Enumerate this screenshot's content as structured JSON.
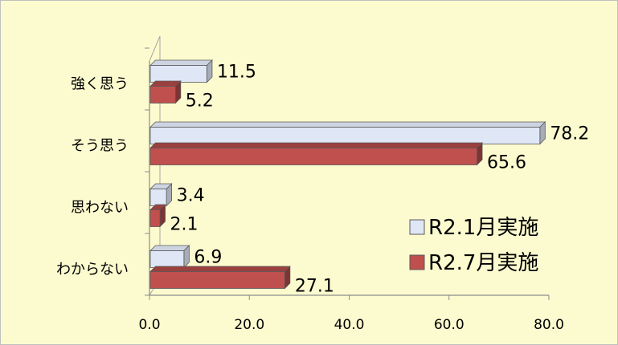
{
  "chart_data": {
    "type": "bar",
    "orientation": "horizontal",
    "title": "",
    "xlabel": "",
    "ylabel": "",
    "categories": [
      "強く思う",
      "そう思う",
      "思わない",
      "わからない"
    ],
    "series": [
      {
        "name": "R2.1月実施",
        "values": [
          11.5,
          78.2,
          3.4,
          6.9
        ],
        "color": "#dfe6f5"
      },
      {
        "name": "R2.7月実施",
        "values": [
          5.2,
          65.6,
          2.1,
          27.1
        ],
        "color": "#c0504d"
      }
    ],
    "data_labels": [
      [
        "11.5",
        "78.2",
        "3.4",
        "6.9"
      ],
      [
        "5.2",
        "65.6",
        "2.1",
        "27.1"
      ]
    ],
    "xlim": [
      0,
      80
    ],
    "xticks": [
      "0.0",
      "20.0",
      "40.0",
      "60.0",
      "80.0"
    ],
    "legend_position": "bottom-right",
    "grid": false,
    "style": "3d",
    "background": "#fcfbcf"
  }
}
